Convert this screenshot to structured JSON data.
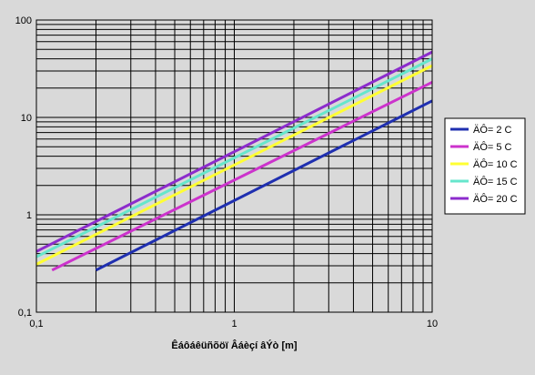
{
  "chart_data": {
    "type": "line",
    "title": "",
    "xlabel": "Êáôáêüñõöï Âáèçí âÝò [m]",
    "ylabel": "",
    "x_scale": "log",
    "y_scale": "log",
    "xlim": [
      0.1,
      10
    ],
    "ylim": [
      0.1,
      100
    ],
    "x_ticks": [
      "0,1",
      "1",
      "10"
    ],
    "y_ticks": [
      "0,1",
      "1",
      "10",
      "100"
    ],
    "grid": true,
    "legend_position": "right",
    "series": [
      {
        "name": "ÄÔ= 2 C",
        "color": "#1f2fb0",
        "x": [
          0.2,
          10
        ],
        "y": [
          0.27,
          14.8
        ]
      },
      {
        "name": "ÄÔ= 5 C",
        "color": "#cc33cc",
        "x": [
          0.12,
          10
        ],
        "y": [
          0.27,
          23
        ]
      },
      {
        "name": "ÄÔ= 10 C",
        "color": "#ffff33",
        "x": [
          0.1,
          10
        ],
        "y": [
          0.31,
          34
        ]
      },
      {
        "name": "ÄÔ= 15 C",
        "color": "#66e6cc",
        "x": [
          0.1,
          10
        ],
        "y": [
          0.37,
          40
        ]
      },
      {
        "name": "ÄÔ= 20 C",
        "color": "#8c2ccc",
        "x": [
          0.1,
          10
        ],
        "y": [
          0.42,
          47
        ]
      }
    ]
  }
}
